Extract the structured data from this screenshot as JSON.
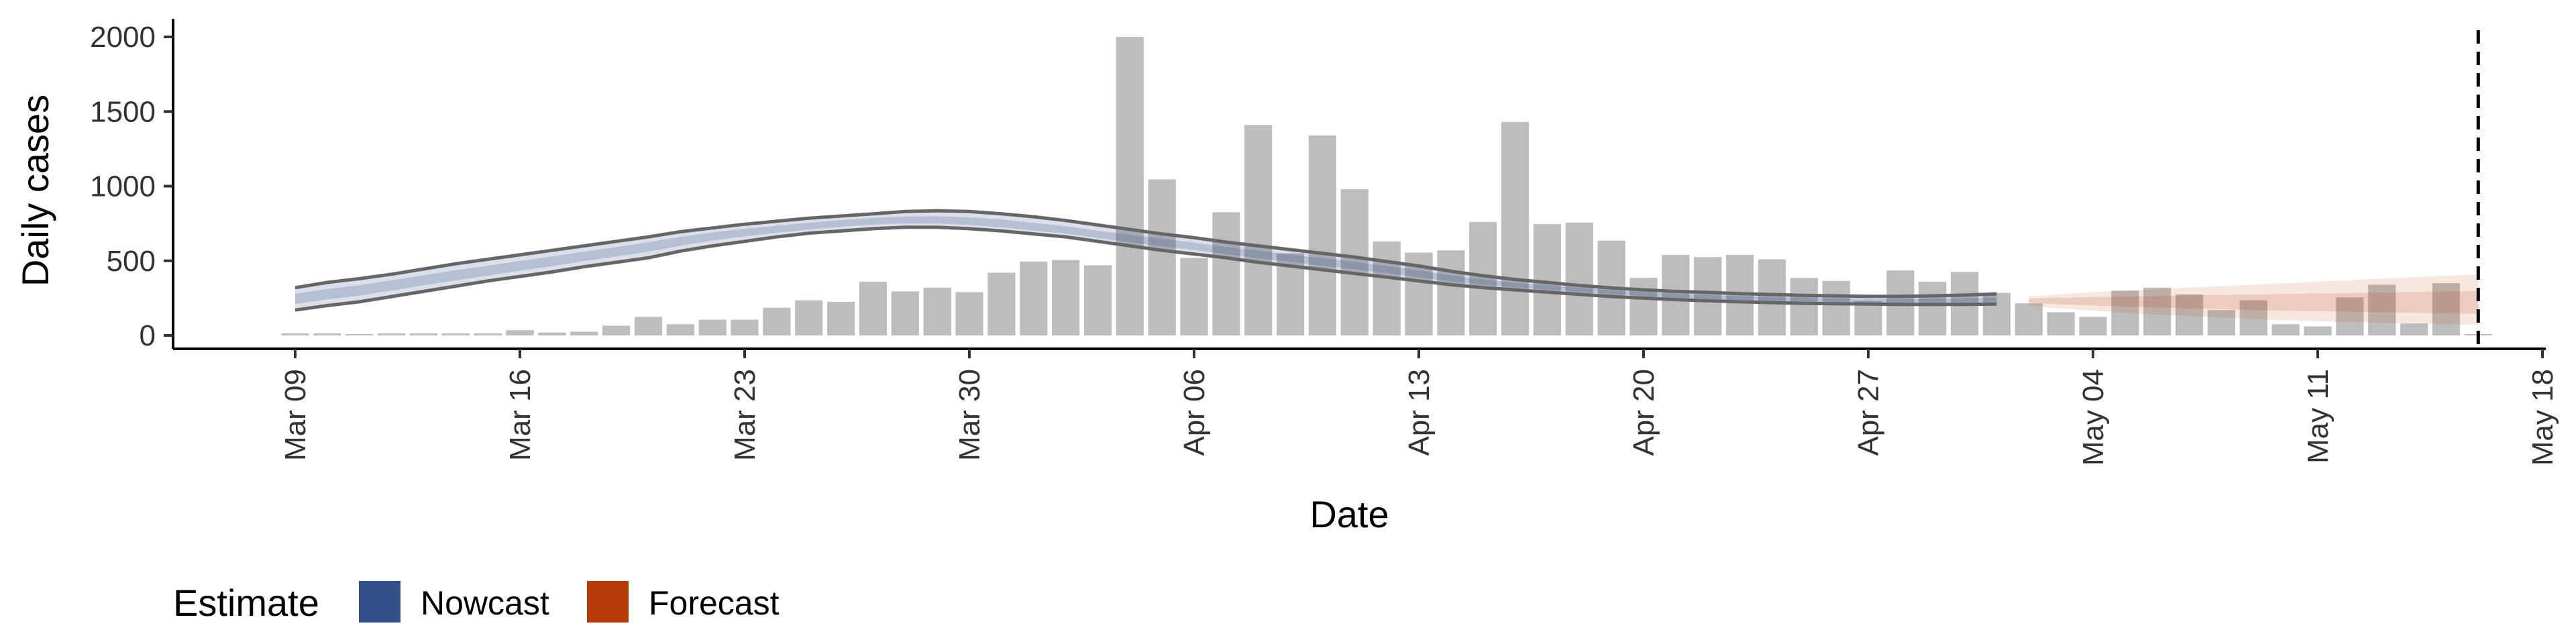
{
  "chart_data": {
    "type": "bar",
    "xlabel": "Date",
    "ylabel": "Daily cases",
    "ylim": [
      -80,
      2080
    ],
    "xlim": [
      "2020-03-06",
      "2020-05-18"
    ],
    "y_ticks": [
      0,
      500,
      1000,
      1500,
      2000
    ],
    "x_ticks": [
      {
        "date": "2020-03-09",
        "label": "Mar 09"
      },
      {
        "date": "2020-03-16",
        "label": "Mar 16"
      },
      {
        "date": "2020-03-23",
        "label": "Mar 23"
      },
      {
        "date": "2020-03-30",
        "label": "Mar 30"
      },
      {
        "date": "2020-04-06",
        "label": "Apr 06"
      },
      {
        "date": "2020-04-13",
        "label": "Apr 13"
      },
      {
        "date": "2020-04-20",
        "label": "Apr 20"
      },
      {
        "date": "2020-04-27",
        "label": "Apr 27"
      },
      {
        "date": "2020-05-04",
        "label": "May 04"
      },
      {
        "date": "2020-05-11",
        "label": "May 11"
      },
      {
        "date": "2020-05-18",
        "label": "May 18"
      }
    ],
    "grid": false,
    "bars": {
      "name": "Daily cases",
      "color": "#bdbdbd",
      "x": [
        "2020-03-09",
        "2020-03-10",
        "2020-03-11",
        "2020-03-12",
        "2020-03-13",
        "2020-03-14",
        "2020-03-15",
        "2020-03-16",
        "2020-03-17",
        "2020-03-18",
        "2020-03-19",
        "2020-03-20",
        "2020-03-21",
        "2020-03-22",
        "2020-03-23",
        "2020-03-24",
        "2020-03-25",
        "2020-03-26",
        "2020-03-27",
        "2020-03-28",
        "2020-03-29",
        "2020-03-30",
        "2020-03-31",
        "2020-04-01",
        "2020-04-02",
        "2020-04-03",
        "2020-04-04",
        "2020-04-05",
        "2020-04-06",
        "2020-04-07",
        "2020-04-08",
        "2020-04-09",
        "2020-04-10",
        "2020-04-11",
        "2020-04-12",
        "2020-04-13",
        "2020-04-14",
        "2020-04-15",
        "2020-04-16",
        "2020-04-17",
        "2020-04-18",
        "2020-04-19",
        "2020-04-20",
        "2020-04-21",
        "2020-04-22",
        "2020-04-23",
        "2020-04-24",
        "2020-04-25",
        "2020-04-26",
        "2020-04-27",
        "2020-04-28",
        "2020-04-29",
        "2020-04-30",
        "2020-05-01",
        "2020-05-02",
        "2020-05-03",
        "2020-05-04",
        "2020-05-05",
        "2020-05-06",
        "2020-05-07",
        "2020-05-08",
        "2020-05-09",
        "2020-05-10",
        "2020-05-11",
        "2020-05-12",
        "2020-05-13",
        "2020-05-14",
        "2020-05-15",
        "2020-05-16"
      ],
      "values": [
        3,
        3,
        0,
        5,
        5,
        5,
        5,
        35,
        20,
        25,
        65,
        125,
        75,
        105,
        105,
        185,
        235,
        225,
        360,
        295,
        320,
        290,
        420,
        495,
        505,
        470,
        2000,
        1045,
        520,
        825,
        1410,
        550,
        1340,
        980,
        630,
        555,
        570,
        760,
        1430,
        745,
        755,
        635,
        385,
        540,
        525,
        540,
        510,
        385,
        365,
        230,
        435,
        360,
        425,
        285,
        215,
        155,
        125,
        300,
        320,
        275,
        170,
        235,
        75,
        60,
        255,
        340,
        80,
        350,
        0
      ]
    },
    "series": [
      {
        "name": "Nowcast",
        "color": "#33508a",
        "x": [
          "2020-03-09",
          "2020-03-10",
          "2020-03-11",
          "2020-03-12",
          "2020-03-13",
          "2020-03-14",
          "2020-03-15",
          "2020-03-16",
          "2020-03-17",
          "2020-03-18",
          "2020-03-19",
          "2020-03-20",
          "2020-03-21",
          "2020-03-22",
          "2020-03-23",
          "2020-03-24",
          "2020-03-25",
          "2020-03-26",
          "2020-03-27",
          "2020-03-28",
          "2020-03-29",
          "2020-03-30",
          "2020-03-31",
          "2020-04-01",
          "2020-04-02",
          "2020-04-03",
          "2020-04-04",
          "2020-04-05",
          "2020-04-06",
          "2020-04-07",
          "2020-04-08",
          "2020-04-09",
          "2020-04-10",
          "2020-04-11",
          "2020-04-12",
          "2020-04-13",
          "2020-04-14",
          "2020-04-15",
          "2020-04-16",
          "2020-04-17",
          "2020-04-18",
          "2020-04-19",
          "2020-04-20",
          "2020-04-21",
          "2020-04-22",
          "2020-04-23",
          "2020-04-24",
          "2020-04-25",
          "2020-04-26",
          "2020-04-27",
          "2020-04-28",
          "2020-04-29",
          "2020-04-30",
          "2020-05-01"
        ],
        "median": [
          245,
          275,
          300,
          335,
          370,
          400,
          430,
          465,
          495,
          530,
          560,
          595,
          630,
          665,
          690,
          710,
          730,
          750,
          765,
          770,
          770,
          760,
          745,
          720,
          700,
          670,
          645,
          620,
          595,
          565,
          540,
          515,
          490,
          465,
          440,
          410,
          380,
          355,
          335,
          320,
          305,
          290,
          275,
          265,
          255,
          248,
          243,
          238,
          235,
          232,
          230,
          230,
          232,
          235
        ],
        "outer_lower": [
          170,
          200,
          225,
          260,
          295,
          330,
          365,
          395,
          425,
          460,
          490,
          520,
          565,
          600,
          630,
          660,
          685,
          700,
          715,
          725,
          725,
          715,
          700,
          680,
          660,
          630,
          600,
          570,
          545,
          520,
          490,
          465,
          440,
          415,
          390,
          365,
          340,
          320,
          305,
          290,
          275,
          260,
          250,
          240,
          232,
          225,
          220,
          215,
          212,
          210,
          208,
          207,
          208,
          210
        ],
        "outer_upper": [
          320,
          355,
          380,
          410,
          445,
          480,
          510,
          540,
          570,
          600,
          630,
          660,
          695,
          720,
          745,
          765,
          785,
          800,
          815,
          830,
          835,
          830,
          815,
          795,
          770,
          740,
          710,
          680,
          655,
          625,
          600,
          575,
          550,
          525,
          495,
          465,
          430,
          400,
          375,
          355,
          335,
          318,
          305,
          295,
          288,
          280,
          274,
          268,
          265,
          262,
          262,
          265,
          270,
          278
        ]
      },
      {
        "name": "Forecast",
        "color": "#b33c0a",
        "x": [
          "2020-05-02",
          "2020-05-03",
          "2020-05-04",
          "2020-05-05",
          "2020-05-06",
          "2020-05-07",
          "2020-05-08",
          "2020-05-09",
          "2020-05-10",
          "2020-05-11",
          "2020-05-12",
          "2020-05-13",
          "2020-05-14",
          "2020-05-15",
          "2020-05-16"
        ],
        "median": [
          235,
          232,
          230,
          228,
          226,
          224,
          222,
          220,
          218,
          216,
          214,
          212,
          210,
          208,
          206
        ],
        "outer_lower": [
          200,
          180,
          165,
          150,
          140,
          130,
          120,
          110,
          100,
          95,
          90,
          85,
          80,
          75,
          70
        ],
        "outer_upper": [
          260,
          275,
          290,
          300,
          310,
          320,
          330,
          340,
          350,
          360,
          370,
          380,
          390,
          400,
          410
        ]
      }
    ],
    "vline": {
      "x": "2020-05-16",
      "style": "dashed"
    },
    "legend": {
      "title": "Estimate",
      "position": "bottom-left",
      "items": [
        {
          "label": "Nowcast",
          "color": "#33508a"
        },
        {
          "label": "Forecast",
          "color": "#b33c0a"
        }
      ]
    }
  }
}
